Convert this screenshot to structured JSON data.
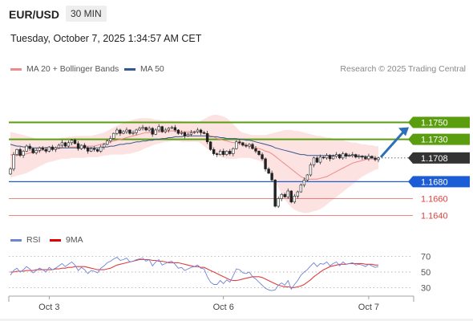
{
  "header": {
    "pair": "EUR/USD",
    "timeframe": "30 MIN",
    "timestamp": "Tuesday, October 7, 2025 1:34:57 AM CET",
    "credit": "Research © 2025 Trading Central"
  },
  "legend": {
    "ma20": "MA 20 + Bollinger Bands",
    "ma50": "MA 50",
    "rsi": "RSI",
    "ma9": "9MA"
  },
  "colors": {
    "ma20": "#f08a8a",
    "ma50": "#34598f",
    "band_fill": "#fde2e2",
    "resistance": "#5a9e10",
    "support": "#1c5cd6",
    "support_low": "#e3413c",
    "last_price": "#333333",
    "arrow": "#2d6fb8",
    "rsi": "#6f83d8",
    "rsi_ma": "#e04040"
  },
  "chart_data": [
    {
      "type": "candlestick",
      "ylim": [
        1.1615,
        1.1795
      ],
      "x_ticks": [
        "Oct 3",
        "Oct 6",
        "Oct 7"
      ],
      "levels": [
        {
          "value": "1.1750",
          "kind": "resistance"
        },
        {
          "value": "1.1730",
          "kind": "resistance"
        },
        {
          "value": "1.1708",
          "kind": "last"
        },
        {
          "value": "1.1680",
          "kind": "support"
        },
        {
          "value": "1.1660",
          "kind": "support_low"
        },
        {
          "value": "1.1640",
          "kind": "support_low"
        }
      ],
      "close": [
        1.1695,
        1.1712,
        1.1718,
        1.1711,
        1.1716,
        1.1722,
        1.1719,
        1.1714,
        1.1717,
        1.172,
        1.1718,
        1.1716,
        1.1721,
        1.1718,
        1.172,
        1.1723,
        1.1726,
        1.1722,
        1.1726,
        1.1729,
        1.1725,
        1.1719,
        1.1723,
        1.172,
        1.1716,
        1.1719,
        1.1718,
        1.1716,
        1.1721,
        1.1724,
        1.1728,
        1.1731,
        1.1737,
        1.1741,
        1.1737,
        1.1739,
        1.1741,
        1.1737,
        1.1738,
        1.1741,
        1.1743,
        1.1744,
        1.1741,
        1.1743,
        1.1736,
        1.1741,
        1.1745,
        1.1739,
        1.1741,
        1.1743,
        1.1744,
        1.1741,
        1.1737,
        1.1738,
        1.1734,
        1.1736,
        1.1738,
        1.1739,
        1.1741,
        1.1738,
        1.1737,
        1.1727,
        1.1718,
        1.1713,
        1.1712,
        1.1716,
        1.1712,
        1.1716,
        1.1713,
        1.1719,
        1.1727,
        1.1726,
        1.1723,
        1.1722,
        1.1724,
        1.1719,
        1.1716,
        1.1712,
        1.1707,
        1.1695,
        1.169,
        1.1682,
        1.1651,
        1.166,
        1.1665,
        1.1662,
        1.1669,
        1.1656,
        1.1663,
        1.1668,
        1.1676,
        1.1682,
        1.1688,
        1.17,
        1.1708,
        1.1703,
        1.1709,
        1.1708,
        1.1711,
        1.1707,
        1.171,
        1.1712,
        1.1708,
        1.1713,
        1.171,
        1.1711,
        1.1712,
        1.1709,
        1.171,
        1.1709,
        1.1707,
        1.171,
        1.1708,
        1.1706,
        1.1708
      ],
      "ma20": [
        1.1712,
        1.1711,
        1.1711,
        1.1712,
        1.1712,
        1.1713,
        1.1714,
        1.1715,
        1.1715,
        1.1716,
        1.1717,
        1.1717,
        1.1718,
        1.1718,
        1.1719,
        1.1719,
        1.172,
        1.172,
        1.172,
        1.1721,
        1.1721,
        1.1721,
        1.1721,
        1.1721,
        1.1722,
        1.1722,
        1.1722,
        1.1723,
        1.1724,
        1.1725,
        1.1726,
        1.1727,
        1.1728,
        1.1729,
        1.173,
        1.1731,
        1.1732,
        1.1733,
        1.1734,
        1.1735,
        1.1736,
        1.1737,
        1.1738,
        1.1738,
        1.1739,
        1.1739,
        1.1739,
        1.1739,
        1.1739,
        1.174,
        1.174,
        1.174,
        1.174,
        1.1739,
        1.1739,
        1.1739,
        1.1739,
        1.1739,
        1.1739,
        1.1738,
        1.1737,
        1.1736,
        1.1734,
        1.1733,
        1.1731,
        1.173,
        1.1729,
        1.1728,
        1.1727,
        1.1726,
        1.1726,
        1.1725,
        1.1724,
        1.1723,
        1.1722,
        1.1721,
        1.172,
        1.1719,
        1.1718,
        1.1716,
        1.1715,
        1.1713,
        1.171,
        1.1707,
        1.1704,
        1.1701,
        1.1698,
        1.1695,
        1.1692,
        1.1689,
        1.1686,
        1.1684,
        1.1683,
        1.1683,
        1.1683,
        1.1683,
        1.1684,
        1.1685,
        1.1686,
        1.1688,
        1.169,
        1.1692,
        1.1694,
        1.1696,
        1.1698,
        1.17,
        1.1702,
        1.1703,
        1.1704,
        1.1705,
        1.1706,
        1.1707,
        1.1707,
        1.1707,
        1.1708
      ],
      "ma50": [
        1.1724,
        1.1723,
        1.1722,
        1.1722,
        1.1721,
        1.1721,
        1.1721,
        1.172,
        1.172,
        1.172,
        1.172,
        1.172,
        1.172,
        1.172,
        1.172,
        1.172,
        1.172,
        1.172,
        1.172,
        1.172,
        1.172,
        1.172,
        1.172,
        1.172,
        1.172,
        1.172,
        1.172,
        1.172,
        1.172,
        1.1721,
        1.1721,
        1.1722,
        1.1722,
        1.1723,
        1.1724,
        1.1724,
        1.1725,
        1.1725,
        1.1726,
        1.1727,
        1.1727,
        1.1728,
        1.1728,
        1.1729,
        1.1729,
        1.173,
        1.173,
        1.1731,
        1.1731,
        1.1732,
        1.1732,
        1.1733,
        1.1733,
        1.1733,
        1.1734,
        1.1734,
        1.1734,
        1.1734,
        1.1734,
        1.1734,
        1.1734,
        1.1734,
        1.1733,
        1.1733,
        1.1733,
        1.1732,
        1.1732,
        1.1731,
        1.1731,
        1.1731,
        1.1731,
        1.173,
        1.173,
        1.1729,
        1.1729,
        1.1728,
        1.1727,
        1.1726,
        1.1725,
        1.1724,
        1.1723,
        1.1722,
        1.172,
        1.1719,
        1.1718,
        1.1717,
        1.1716,
        1.1715,
        1.1714,
        1.1713,
        1.1712,
        1.1712,
        1.1711,
        1.1711,
        1.1711,
        1.1711,
        1.1711,
        1.1711,
        1.1711,
        1.1711,
        1.1711,
        1.1711,
        1.1711,
        1.1711,
        1.1711,
        1.1711,
        1.1711,
        1.1711,
        1.171,
        1.171,
        1.171,
        1.1709,
        1.1709
      ],
      "bb_upper": [
        1.1739,
        1.1738,
        1.1737,
        1.1736,
        1.1735,
        1.1734,
        1.1733,
        1.1732,
        1.1731,
        1.1731,
        1.1731,
        1.1731,
        1.1731,
        1.1731,
        1.1731,
        1.1731,
        1.1732,
        1.1732,
        1.1733,
        1.1733,
        1.1734,
        1.1734,
        1.1734,
        1.1734,
        1.1734,
        1.1734,
        1.1735,
        1.1736,
        1.1737,
        1.1738,
        1.174,
        1.1742,
        1.1744,
        1.1746,
        1.1748,
        1.1749,
        1.1751,
        1.1752,
        1.1753,
        1.1754,
        1.1755,
        1.1755,
        1.1755,
        1.1755,
        1.1754,
        1.1753,
        1.1753,
        1.1752,
        1.1752,
        1.1752,
        1.1752,
        1.1752,
        1.1752,
        1.1751,
        1.1751,
        1.1751,
        1.175,
        1.175,
        1.175,
        1.1752,
        1.1754,
        1.1756,
        1.1758,
        1.1759,
        1.1759,
        1.1758,
        1.1757,
        1.1755,
        1.1752,
        1.1748,
        1.1744,
        1.174,
        1.1738,
        1.1737,
        1.1736,
        1.1735,
        1.1735,
        1.1735,
        1.1735,
        1.1735,
        1.1736,
        1.1737,
        1.1738,
        1.1739,
        1.174,
        1.1741,
        1.1741,
        1.1741,
        1.174,
        1.174,
        1.1739,
        1.1738,
        1.1737,
        1.1736,
        1.1735,
        1.1734,
        1.1734,
        1.1733,
        1.1732,
        1.1732,
        1.1731,
        1.173,
        1.173,
        1.1729,
        1.1728,
        1.1727,
        1.1726,
        1.1726,
        1.1725,
        1.1724,
        1.1724,
        1.1723,
        1.1723,
        1.1722,
        1.1722
      ],
      "bb_lower": [
        1.1685,
        1.1686,
        1.1687,
        1.1688,
        1.1689,
        1.169,
        1.1692,
        1.1694,
        1.1696,
        1.1698,
        1.17,
        1.1702,
        1.1703,
        1.1704,
        1.1705,
        1.1706,
        1.1707,
        1.1707,
        1.1707,
        1.1708,
        1.1708,
        1.1708,
        1.1708,
        1.1708,
        1.1709,
        1.1709,
        1.1709,
        1.1709,
        1.171,
        1.1711,
        1.1711,
        1.1712,
        1.1712,
        1.1712,
        1.1712,
        1.1712,
        1.1713,
        1.1713,
        1.1714,
        1.1715,
        1.1716,
        1.1718,
        1.172,
        1.1721,
        1.1723,
        1.1724,
        1.1725,
        1.1726,
        1.1727,
        1.1727,
        1.1728,
        1.1728,
        1.1728,
        1.1727,
        1.1727,
        1.1727,
        1.1727,
        1.1727,
        1.1727,
        1.1725,
        1.1722,
        1.1719,
        1.1716,
        1.1713,
        1.1711,
        1.1709,
        1.1708,
        1.1707,
        1.1707,
        1.1707,
        1.1707,
        1.1708,
        1.1708,
        1.1708,
        1.1708,
        1.1707,
        1.1706,
        1.1705,
        1.1703,
        1.1699,
        1.1693,
        1.1687,
        1.168,
        1.1673,
        1.1666,
        1.1659,
        1.1654,
        1.165,
        1.1647,
        1.1645,
        1.1644,
        1.1643,
        1.1643,
        1.1644,
        1.1645,
        1.1646,
        1.1648,
        1.165,
        1.1653,
        1.1656,
        1.1659,
        1.1662,
        1.1665,
        1.1668,
        1.1671,
        1.1674,
        1.1677,
        1.168,
        1.1683,
        1.1686,
        1.1688,
        1.169,
        1.1692,
        1.1694,
        1.1695
      ],
      "projection": {
        "from": 1.1708,
        "to": 1.175
      }
    },
    {
      "type": "line",
      "name": "RSI",
      "ylim": [
        20,
        80
      ],
      "y_ticks": [
        "70",
        "50",
        "30"
      ],
      "rsi": [
        46,
        52,
        55,
        50,
        53,
        57,
        54,
        49,
        52,
        55,
        53,
        50,
        56,
        53,
        55,
        58,
        61,
        57,
        60,
        63,
        59,
        52,
        56,
        53,
        48,
        52,
        51,
        49,
        55,
        58,
        62,
        64,
        67,
        69,
        65,
        66,
        68,
        63,
        64,
        66,
        67,
        68,
        64,
        66,
        58,
        63,
        66,
        59,
        61,
        63,
        64,
        60,
        55,
        56,
        52,
        54,
        56,
        57,
        59,
        55,
        54,
        44,
        37,
        34,
        34,
        39,
        35,
        40,
        37,
        45,
        54,
        53,
        49,
        48,
        50,
        44,
        41,
        37,
        33,
        29,
        27,
        26,
        27,
        33,
        36,
        33,
        39,
        28,
        34,
        39,
        46,
        50,
        53,
        58,
        62,
        57,
        61,
        60,
        63,
        58,
        61,
        63,
        58,
        63,
        60,
        61,
        62,
        59,
        60,
        59,
        57,
        60,
        58,
        56,
        57
      ],
      "ma9": [
        50,
        50,
        51,
        51,
        51,
        52,
        52,
        52,
        53,
        53,
        53,
        53,
        53,
        53,
        54,
        54,
        55,
        55,
        56,
        56,
        57,
        57,
        57,
        57,
        56,
        55,
        54,
        53,
        53,
        53,
        54,
        55,
        57,
        59,
        60,
        61,
        62,
        63,
        64,
        65,
        66,
        66,
        66,
        66,
        65,
        65,
        64,
        64,
        63,
        62,
        62,
        62,
        62,
        61,
        60,
        59,
        58,
        57,
        57,
        56,
        56,
        54,
        52,
        50,
        48,
        46,
        44,
        42,
        40,
        39,
        39,
        40,
        41,
        42,
        43,
        44,
        44,
        44,
        43,
        41,
        39,
        37,
        35,
        33,
        32,
        31,
        31,
        30,
        30,
        31,
        32,
        34,
        37,
        40,
        44,
        47,
        50,
        53,
        55,
        57,
        58,
        59,
        60,
        60,
        60,
        61,
        61,
        61,
        61,
        61,
        60,
        60,
        60,
        59,
        59
      ]
    }
  ]
}
